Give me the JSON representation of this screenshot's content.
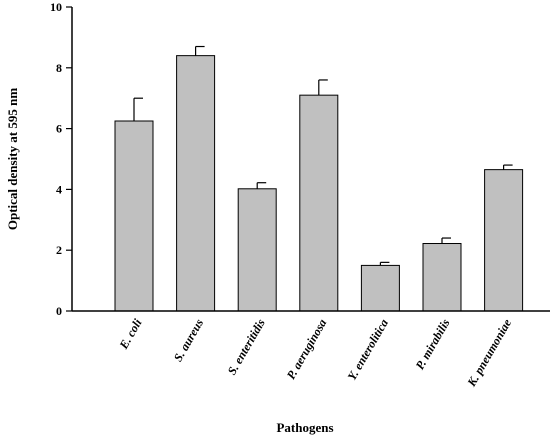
{
  "chart_data": {
    "type": "bar",
    "title": "",
    "xlabel": "Pathogens",
    "ylabel": "Optical density at 595 nm",
    "categories": [
      "E. coli",
      "S. aureus",
      "S. enteritidis",
      "P. aeruginosa",
      "Y. enterolitica",
      "P. mirabilis",
      "K. pneumoniae"
    ],
    "values": [
      6.25,
      8.4,
      4.02,
      7.1,
      1.5,
      2.22,
      4.65
    ],
    "errors": [
      0.75,
      0.3,
      0.2,
      0.5,
      0.1,
      0.18,
      0.15
    ],
    "ylim": [
      0,
      10
    ],
    "yticks": [
      "0",
      "2",
      "4",
      "6",
      "8",
      "10"
    ],
    "grid": false,
    "bar_color": "#c0c0c0",
    "edge_color": "#000000"
  }
}
